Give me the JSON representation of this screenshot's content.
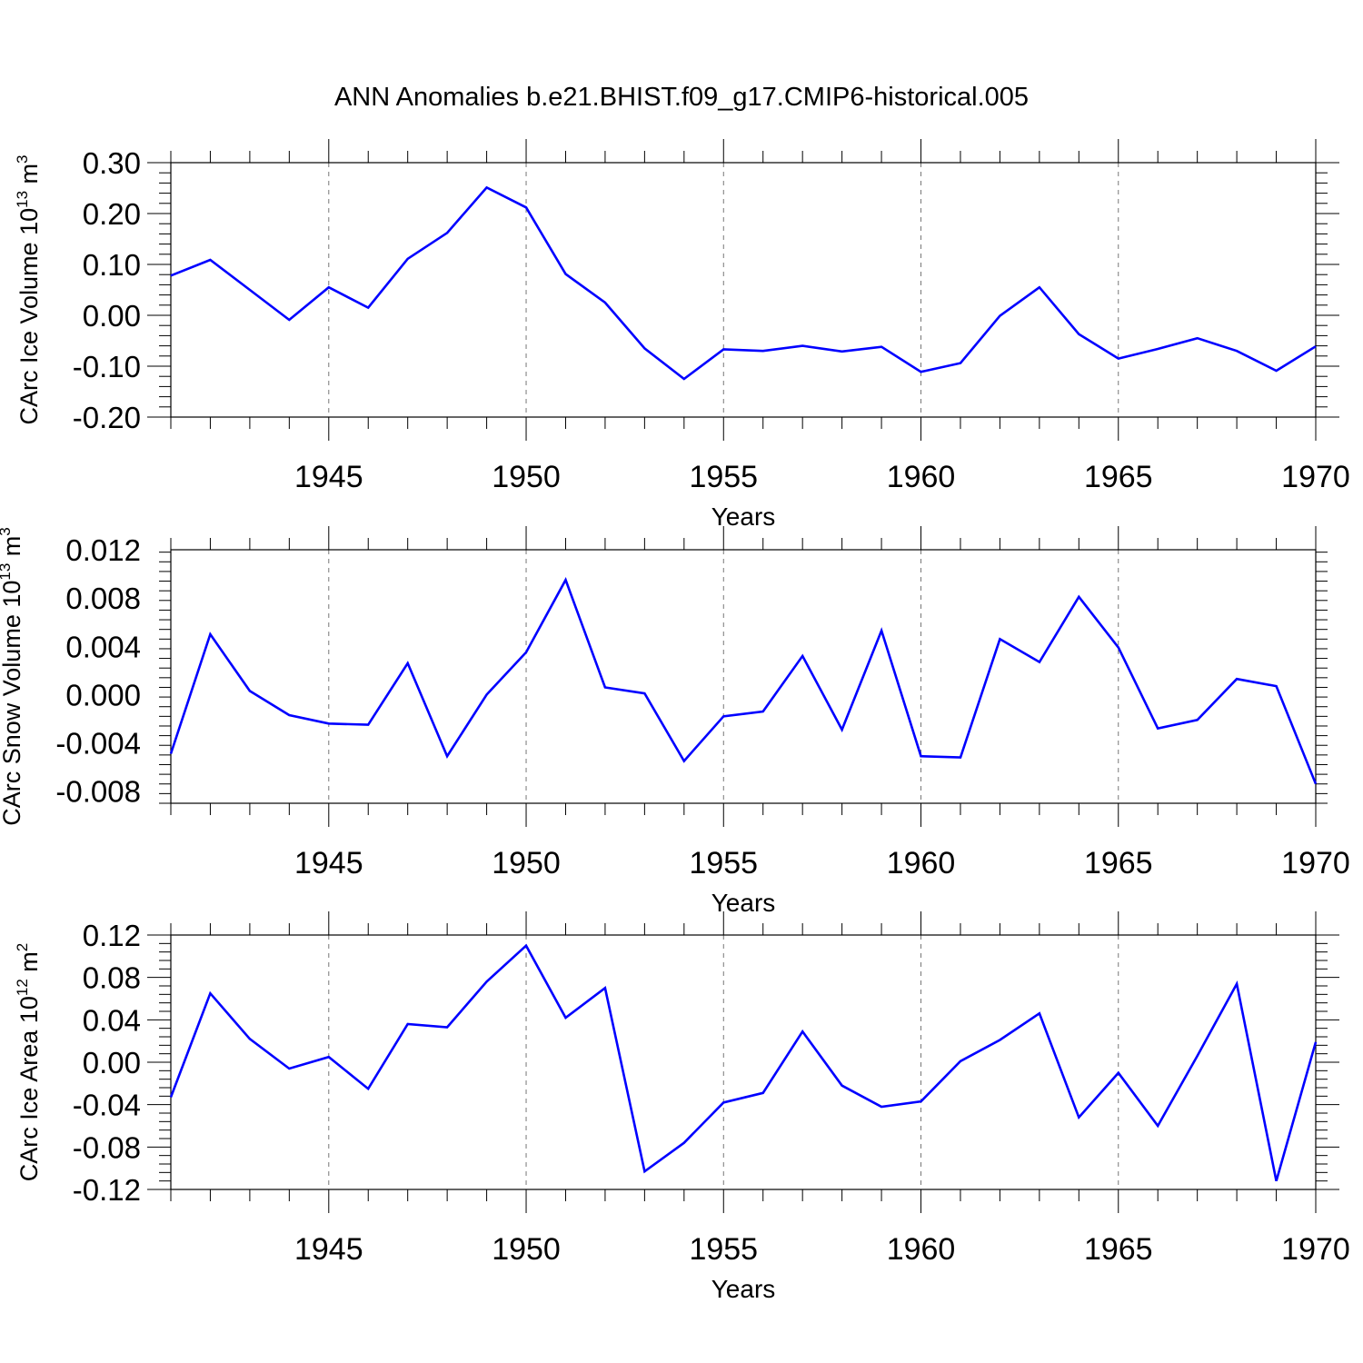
{
  "title": "ANN Anomalies b.e21.BHIST.f09_g17.CMIP6-historical.005",
  "line_color": "#0000ff",
  "chart_data": [
    {
      "type": "line",
      "ylabel": "CArc Ice Volume 10",
      "ylabel_exp": "13",
      "ylabel_unit": " m",
      "ylabel_unit_exp": "3",
      "xlabel": "Years",
      "xlim": [
        1941,
        1970
      ],
      "ylim": [
        -0.2,
        0.3
      ],
      "yticks": [
        -0.2,
        -0.1,
        0.0,
        0.1,
        0.2,
        0.3
      ],
      "ytick_labels": [
        "-0.20",
        "-0.10",
        "0.00",
        "0.10",
        "0.20",
        "0.30"
      ],
      "xticks": [
        1945,
        1950,
        1955,
        1960,
        1965,
        1970
      ],
      "xtick_labels": [
        "1945",
        "1950",
        "1955",
        "1960",
        "1965",
        "1970"
      ],
      "grid": "dashed vertical lines at labeled years",
      "x": [
        1941,
        1942,
        1943,
        1944,
        1945,
        1946,
        1947,
        1948,
        1949,
        1950,
        1951,
        1952,
        1953,
        1954,
        1955,
        1956,
        1957,
        1958,
        1959,
        1960,
        1961,
        1962,
        1963,
        1964,
        1965,
        1966,
        1967,
        1968,
        1969,
        1970
      ],
      "values": [
        0.078,
        0.109,
        0.05,
        -0.009,
        0.055,
        0.015,
        0.111,
        0.162,
        0.251,
        0.212,
        0.081,
        0.025,
        -0.065,
        -0.125,
        -0.067,
        -0.07,
        -0.06,
        -0.071,
        -0.062,
        -0.111,
        -0.094,
        -0.001,
        0.055,
        -0.037,
        -0.085,
        -0.066,
        -0.045,
        -0.07,
        -0.109,
        -0.061
      ]
    },
    {
      "type": "line",
      "ylabel": "CArc Snow Volume 10",
      "ylabel_exp": "13",
      "ylabel_unit": " m",
      "ylabel_unit_exp": "3",
      "xlabel": "Years",
      "xlim": [
        1941,
        1970
      ],
      "ylim": [
        -0.009,
        0.012
      ],
      "yticks": [
        -0.008,
        -0.004,
        0.0,
        0.004,
        0.008,
        0.012
      ],
      "ytick_labels": [
        "-0.008",
        "-0.004",
        "0.000",
        "0.004",
        "0.008",
        "0.012"
      ],
      "xticks": [
        1945,
        1950,
        1955,
        1960,
        1965,
        1970
      ],
      "xtick_labels": [
        "1945",
        "1950",
        "1955",
        "1960",
        "1965",
        "1970"
      ],
      "grid": "dashed vertical lines at labeled years",
      "x": [
        1941,
        1942,
        1943,
        1944,
        1945,
        1946,
        1947,
        1948,
        1949,
        1950,
        1951,
        1952,
        1953,
        1954,
        1955,
        1956,
        1957,
        1958,
        1959,
        1960,
        1961,
        1962,
        1963,
        1964,
        1965,
        1966,
        1967,
        1968,
        1969,
        1970
      ],
      "values": [
        -0.0049,
        0.005,
        0.0003,
        -0.0017,
        -0.0024,
        -0.0025,
        0.0026,
        -0.0051,
        0.0,
        0.0035,
        0.0095,
        0.0006,
        0.0001,
        -0.0055,
        -0.0018,
        -0.0014,
        0.0032,
        -0.0029,
        0.0053,
        -0.0051,
        -0.0052,
        0.0046,
        0.0027,
        0.0081,
        0.0039,
        -0.0028,
        -0.0021,
        0.0013,
        0.0007,
        -0.0074
      ]
    },
    {
      "type": "line",
      "ylabel": "CArc Ice Area 10",
      "ylabel_exp": "12",
      "ylabel_unit": " m",
      "ylabel_unit_exp": "2",
      "xlabel": "Years",
      "xlim": [
        1941,
        1970
      ],
      "ylim": [
        -0.12,
        0.12
      ],
      "yticks": [
        -0.12,
        -0.08,
        -0.04,
        0.0,
        0.04,
        0.08,
        0.12
      ],
      "ytick_labels": [
        "-0.12",
        "-0.08",
        "-0.04",
        "0.00",
        "0.04",
        "0.08",
        "0.12"
      ],
      "xticks": [
        1945,
        1950,
        1955,
        1960,
        1965,
        1970
      ],
      "xtick_labels": [
        "1945",
        "1950",
        "1955",
        "1960",
        "1965",
        "1970"
      ],
      "grid": "dashed vertical lines at labeled years",
      "x": [
        1941,
        1942,
        1943,
        1944,
        1945,
        1946,
        1947,
        1948,
        1949,
        1950,
        1951,
        1952,
        1953,
        1954,
        1955,
        1956,
        1957,
        1958,
        1959,
        1960,
        1961,
        1962,
        1963,
        1964,
        1965,
        1966,
        1967,
        1968,
        1969,
        1970
      ],
      "values": [
        -0.033,
        0.065,
        0.022,
        -0.006,
        0.005,
        -0.025,
        0.036,
        0.033,
        0.076,
        0.11,
        0.042,
        0.07,
        -0.103,
        -0.076,
        -0.038,
        -0.029,
        0.029,
        -0.022,
        -0.042,
        -0.037,
        0.001,
        0.021,
        0.046,
        -0.052,
        -0.01,
        -0.06,
        0.006,
        0.074,
        -0.112,
        0.019
      ]
    }
  ]
}
